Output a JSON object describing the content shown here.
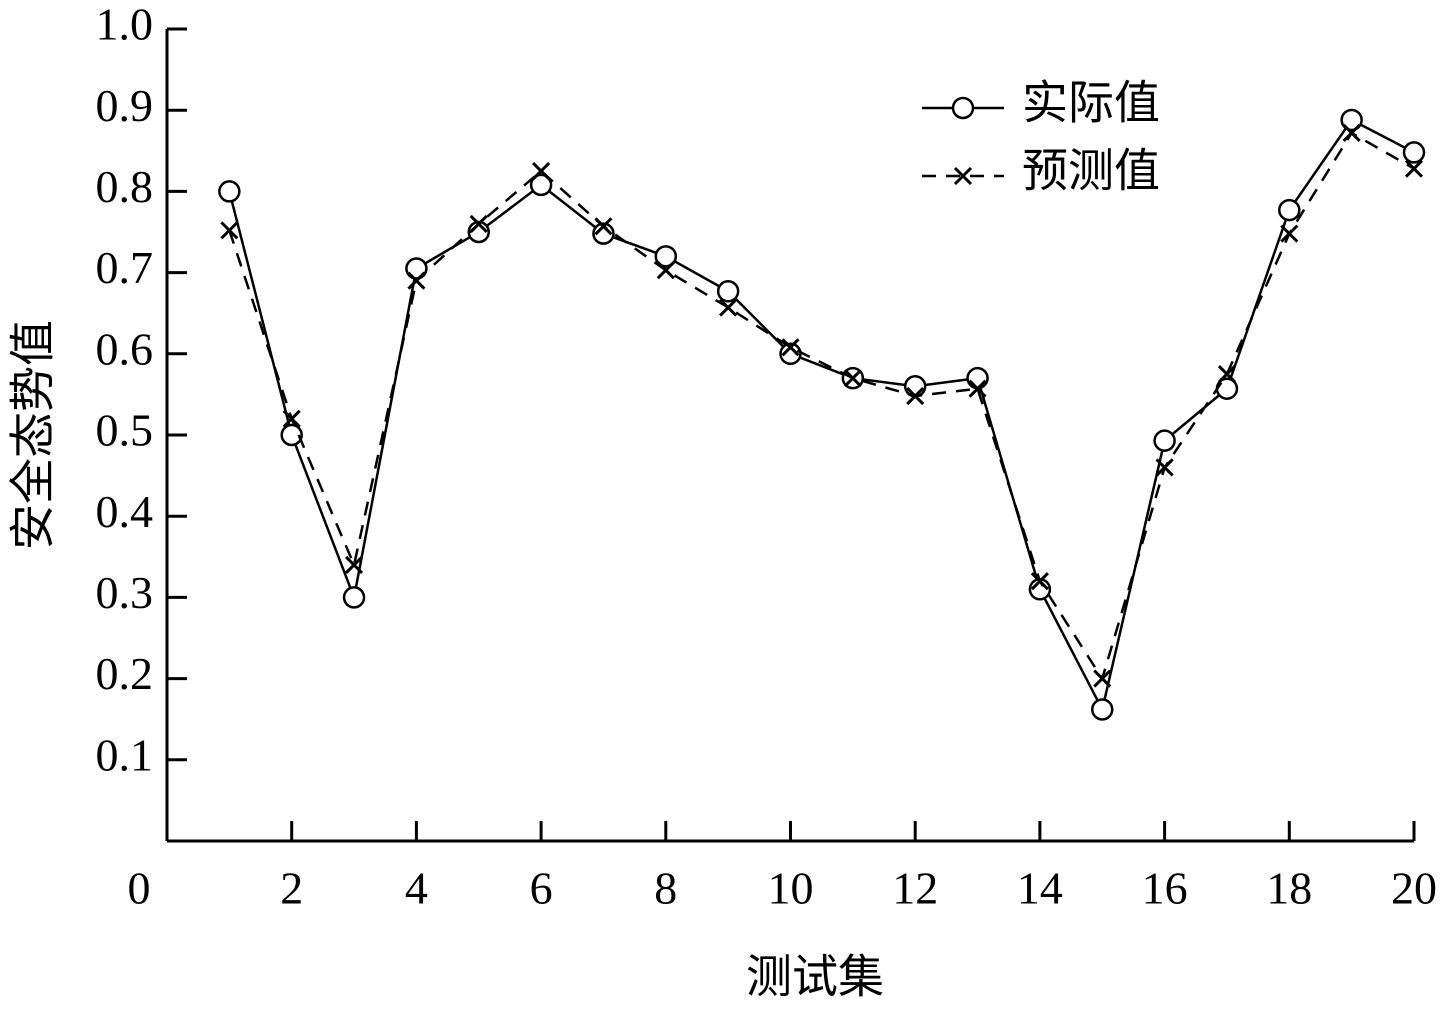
{
  "chart_data": {
    "type": "line",
    "x_label": "测试集",
    "y_label": "安全态势值",
    "x": [
      1,
      2,
      3,
      4,
      5,
      6,
      7,
      8,
      9,
      10,
      11,
      12,
      13,
      14,
      15,
      16,
      17,
      18,
      19,
      20
    ],
    "series": [
      {
        "name": "实际值",
        "color": "#000000",
        "dash": "solid",
        "marker": "circle",
        "values": [
          0.8,
          0.5,
          0.3,
          0.705,
          0.75,
          0.808,
          0.748,
          0.72,
          0.677,
          0.6,
          0.57,
          0.56,
          0.57,
          0.31,
          0.162,
          0.493,
          0.557,
          0.777,
          0.888,
          0.848
        ]
      },
      {
        "name": "预测值",
        "color": "#000000",
        "dash": "dashed",
        "marker": "x",
        "values": [
          0.752,
          0.52,
          0.34,
          0.69,
          0.76,
          0.825,
          0.757,
          0.703,
          0.657,
          0.608,
          0.57,
          0.548,
          0.557,
          0.32,
          0.2,
          0.46,
          0.575,
          0.748,
          0.872,
          0.828
        ]
      }
    ],
    "xlim": [
      0,
      20
    ],
    "xticks": [
      0,
      2,
      4,
      6,
      8,
      10,
      12,
      14,
      16,
      18,
      20
    ],
    "ylim": [
      0,
      1
    ],
    "yticks": [
      0.1,
      0.2,
      0.3,
      0.4,
      0.5,
      0.6,
      0.7,
      0.8,
      0.9,
      {
        "value": 1,
        "label": "1.0"
      }
    ],
    "legend": "upper right",
    "grid": false
  }
}
